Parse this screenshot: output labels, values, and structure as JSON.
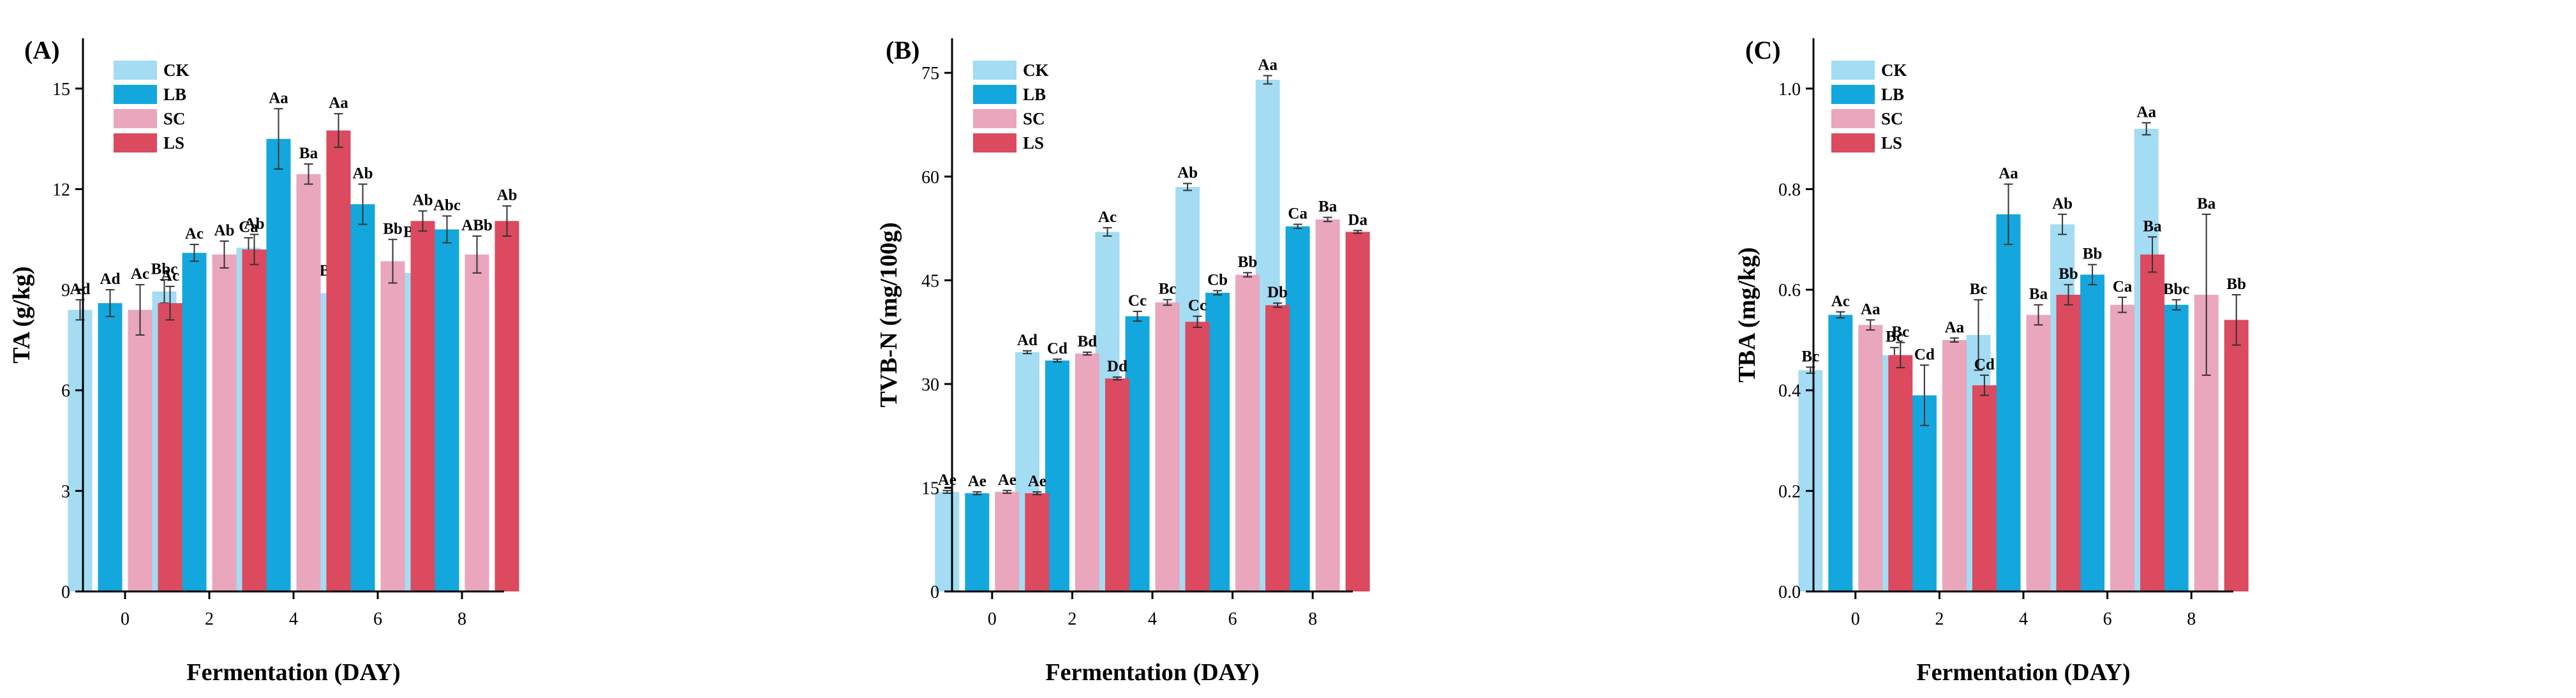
{
  "chart_data": [
    {
      "type": "bar",
      "panel_label": "(A)",
      "title": "",
      "xlabel": "Fermentation (DAY)",
      "ylabel": "TA (g/kg)",
      "ylim": [
        0,
        16.5
      ],
      "yticks": [
        "0",
        "3",
        "6",
        "9",
        "12",
        "15"
      ],
      "ytick_values": [
        0,
        3,
        6,
        9,
        12,
        15
      ],
      "categories": [
        "0",
        "2",
        "4",
        "6",
        "8"
      ],
      "legend_position": "top-left",
      "series": [
        {
          "name": "CK",
          "color": "#a3dcf3",
          "values": [
            8.4,
            8.95,
            10.25,
            8.9,
            9.5
          ],
          "errors": [
            0.3,
            0.35,
            0.3,
            0.35,
            0.9
          ],
          "labels": [
            "Ad",
            "Bbc",
            "Ca",
            "Bbc",
            "Bab"
          ]
        },
        {
          "name": "LB",
          "color": "#13a7dd",
          "values": [
            8.6,
            10.1,
            13.5,
            11.55,
            10.8
          ],
          "errors": [
            0.4,
            0.25,
            0.9,
            0.6,
            0.4
          ],
          "labels": [
            "Ad",
            "Ac",
            "Aa",
            "Ab",
            "Abc"
          ]
        },
        {
          "name": "SC",
          "color": "#eaa6bd",
          "values": [
            8.4,
            10.05,
            12.45,
            9.85,
            10.05
          ],
          "errors": [
            0.75,
            0.4,
            0.3,
            0.65,
            0.55
          ],
          "labels": [
            "Ac",
            "Ab",
            "Ba",
            "Bb",
            "ABb"
          ]
        },
        {
          "name": "LS",
          "color": "#db4a5e",
          "values": [
            8.6,
            10.2,
            13.75,
            11.05,
            11.05
          ],
          "errors": [
            0.5,
            0.45,
            0.5,
            0.3,
            0.45
          ],
          "labels": [
            "Ac",
            "Ab",
            "Aa",
            "Ab",
            "Ab"
          ]
        }
      ]
    },
    {
      "type": "bar",
      "panel_label": "(B)",
      "title": "",
      "xlabel": "Fermentation (DAY)",
      "ylabel": "TVB-N (mg/100g)",
      "ylim": [
        0,
        80
      ],
      "yticks": [
        "0",
        "15",
        "30",
        "45",
        "60",
        "75"
      ],
      "ytick_values": [
        0,
        15,
        30,
        45,
        60,
        75
      ],
      "categories": [
        "0",
        "2",
        "4",
        "6",
        "8"
      ],
      "legend_position": "top-left",
      "series": [
        {
          "name": "CK",
          "color": "#a3dcf3",
          "values": [
            14.4,
            34.6,
            52.0,
            58.5,
            74.0
          ],
          "errors": [
            0.2,
            0.2,
            0.6,
            0.5,
            0.6
          ],
          "labels": [
            "Ae",
            "Ad",
            "Ac",
            "Ab",
            "Aa"
          ]
        },
        {
          "name": "LB",
          "color": "#13a7dd",
          "values": [
            14.2,
            33.4,
            39.8,
            43.2,
            52.8
          ],
          "errors": [
            0.2,
            0.2,
            0.7,
            0.3,
            0.3
          ],
          "labels": [
            "Ae",
            "Cd",
            "Cc",
            "Cb",
            "Ca"
          ]
        },
        {
          "name": "SC",
          "color": "#eaa6bd",
          "values": [
            14.4,
            34.4,
            41.8,
            45.8,
            53.8
          ],
          "errors": [
            0.2,
            0.2,
            0.4,
            0.3,
            0.3
          ],
          "labels": [
            "Ae",
            "Bd",
            "Bc",
            "Bb",
            "Ba"
          ]
        },
        {
          "name": "LS",
          "color": "#db4a5e",
          "values": [
            14.2,
            30.8,
            39.0,
            41.4,
            52.0
          ],
          "errors": [
            0.2,
            0.2,
            0.8,
            0.3,
            0.2
          ],
          "labels": [
            "Ae",
            "Dd",
            "Cc",
            "Db",
            "Da"
          ]
        }
      ]
    },
    {
      "type": "bar",
      "panel_label": "(C)",
      "title": "",
      "xlabel": "Fermentation (DAY)",
      "ylabel": "TBA (mg/kg)",
      "ylim": [
        0,
        1.1
      ],
      "yticks": [
        "0.0",
        "0.2",
        "0.4",
        "0.6",
        "0.8",
        "1.0"
      ],
      "ytick_values": [
        0,
        0.2,
        0.4,
        0.6,
        0.8,
        1.0
      ],
      "categories": [
        "0",
        "2",
        "4",
        "6",
        "8"
      ],
      "legend_position": "top-left",
      "series": [
        {
          "name": "CK",
          "color": "#a3dcf3",
          "values": [
            0.44,
            0.47,
            0.51,
            0.73,
            0.92
          ],
          "errors": [
            0.006,
            0.015,
            0.07,
            0.02,
            0.012
          ],
          "labels": [
            "Bc",
            "Bc",
            "Bc",
            "Ab",
            "Aa"
          ]
        },
        {
          "name": "LB",
          "color": "#13a7dd",
          "values": [
            0.55,
            0.39,
            0.75,
            0.63,
            0.57
          ],
          "errors": [
            0.006,
            0.06,
            0.06,
            0.02,
            0.01
          ],
          "labels": [
            "Ac",
            "Cd",
            "Aa",
            "Bb",
            "Bbc"
          ]
        },
        {
          "name": "SC",
          "color": "#eaa6bd",
          "values": [
            0.53,
            0.5,
            0.55,
            0.57,
            0.59
          ],
          "errors": [
            0.01,
            0.004,
            0.02,
            0.015,
            0.16
          ],
          "labels": [
            "Aa",
            "Aa",
            "Ba",
            "Ca",
            "Ba"
          ]
        },
        {
          "name": "LS",
          "color": "#db4a5e",
          "values": [
            0.47,
            0.41,
            0.59,
            0.67,
            0.54
          ],
          "errors": [
            0.025,
            0.02,
            0.02,
            0.035,
            0.05
          ],
          "labels": [
            "Bc",
            "Cd",
            "Bb",
            "Ba",
            "Bb"
          ]
        }
      ]
    }
  ]
}
